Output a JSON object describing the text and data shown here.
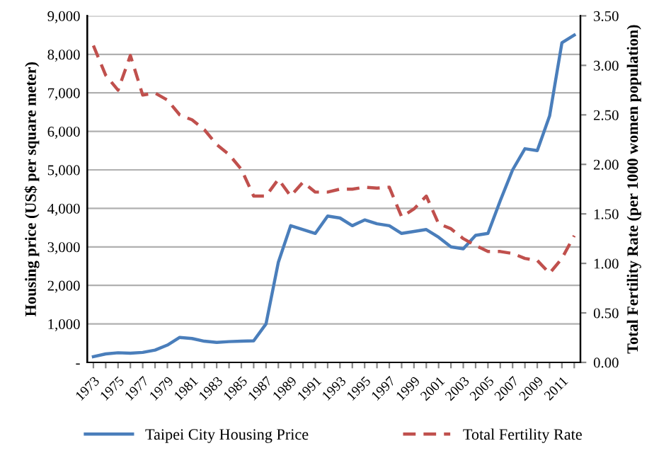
{
  "chart_data": {
    "type": "line",
    "ylabel": "Housing price (US$ per square meter)",
    "y2label": "Total Fertility Rate (per 1000 women population)",
    "categories": [
      "1973",
      null,
      "1975",
      null,
      "1977",
      null,
      "1979",
      null,
      "1981",
      null,
      "1983",
      null,
      "1985",
      null,
      "1987",
      null,
      "1989",
      null,
      "1991",
      null,
      "1993",
      null,
      "1995",
      null,
      "1997",
      null,
      "1999",
      null,
      "2001",
      null,
      "2003",
      null,
      "2005",
      null,
      "2007",
      null,
      "2009",
      null,
      "2011",
      null
    ],
    "series": [
      {
        "name": "Taipei City Housing Price",
        "color": "#4a7ebb",
        "line_style": "solid",
        "values": [
          150,
          220,
          250,
          240,
          260,
          320,
          450,
          650,
          620,
          550,
          520,
          540,
          550,
          560,
          1000,
          2600,
          3550,
          3450,
          3350,
          3800,
          3750,
          3550,
          3700,
          3600,
          3550,
          3350,
          3400,
          3450,
          3250,
          3000,
          2950,
          3300,
          3350,
          4200,
          5000,
          5550,
          5500,
          6400,
          8300,
          8500
        ]
      },
      {
        "name": "Total Fertility Rate",
        "color": "#c0504d",
        "line_style": "dashed",
        "axis": "y2",
        "values": [
          3.2,
          2.9,
          2.75,
          3.1,
          2.7,
          2.72,
          2.65,
          2.5,
          2.45,
          2.35,
          2.2,
          2.1,
          1.95,
          1.68,
          1.68,
          1.85,
          1.68,
          1.82,
          1.72,
          1.72,
          1.75,
          1.75,
          1.77,
          1.76,
          1.77,
          1.47,
          1.55,
          1.68,
          1.4,
          1.35,
          1.25,
          1.18,
          1.12,
          1.12,
          1.1,
          1.05,
          1.03,
          0.9,
          1.05,
          1.28
        ]
      }
    ],
    "ylim": [
      0,
      9000
    ],
    "yticks": [
      {
        "value": 0,
        "label": "-"
      },
      {
        "value": 1000,
        "label": "1,000"
      },
      {
        "value": 2000,
        "label": "2,000"
      },
      {
        "value": 3000,
        "label": "3,000"
      },
      {
        "value": 4000,
        "label": "4,000"
      },
      {
        "value": 5000,
        "label": "5,000"
      },
      {
        "value": 6000,
        "label": "6,000"
      },
      {
        "value": 7000,
        "label": "7,000"
      },
      {
        "value": 8000,
        "label": "8,000"
      },
      {
        "value": 9000,
        "label": "9,000"
      }
    ],
    "y2lim": [
      0,
      3.5
    ],
    "y2ticks": [
      {
        "value": 0,
        "label": "0.00"
      },
      {
        "value": 0.5,
        "label": "0.50"
      },
      {
        "value": 1,
        "label": "1.00"
      },
      {
        "value": 1.5,
        "label": "1.50"
      },
      {
        "value": 2,
        "label": "2.00"
      },
      {
        "value": 2.5,
        "label": "2.50"
      },
      {
        "value": 3,
        "label": "3.00"
      },
      {
        "value": 3.5,
        "label": "3.50"
      }
    ],
    "grid": "y",
    "legend": "bottom",
    "marker": "none"
  }
}
